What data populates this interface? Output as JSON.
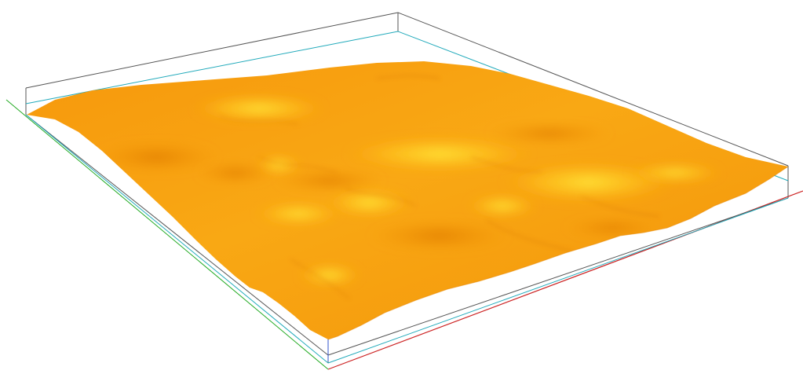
{
  "scene": {
    "background_color": "#ffffff",
    "surface_color_dark": "#f08a05",
    "surface_color_mid": "#f7a20f",
    "surface_color_light": "#ffd92a",
    "bounding_box_color": "#444444",
    "x_axis_color": "#cc2222",
    "y_axis_color": "#22aa22",
    "z_axis_color": "#3355cc",
    "reference_plane_color": "#22aabb",
    "surface_type": "3d-terrain-surface",
    "axes_visible": true,
    "bounding_box_visible": true
  }
}
